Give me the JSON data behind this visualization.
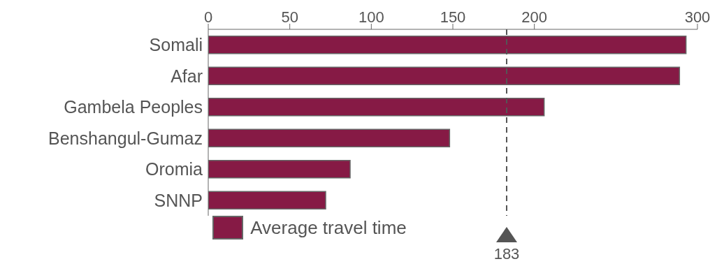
{
  "chart_data": {
    "type": "bar",
    "orientation": "horizontal",
    "categories": [
      "Somali",
      "Afar",
      "Gambela Peoples",
      "Benshangul-Gumaz",
      "Oromia",
      "SNNP"
    ],
    "series": [
      {
        "name": "Average travel time",
        "color": "#861a45",
        "values": [
          293,
          289,
          206,
          148,
          87,
          72
        ]
      }
    ],
    "xlim": [
      0,
      300
    ],
    "xticks": [
      0,
      50,
      100,
      150,
      200,
      300
    ],
    "grid": false,
    "legend": "bottom",
    "ref_lines": [
      {
        "axis": "x",
        "value": 183,
        "label": "183",
        "line_style": "dashed",
        "color": "#555555"
      }
    ]
  }
}
